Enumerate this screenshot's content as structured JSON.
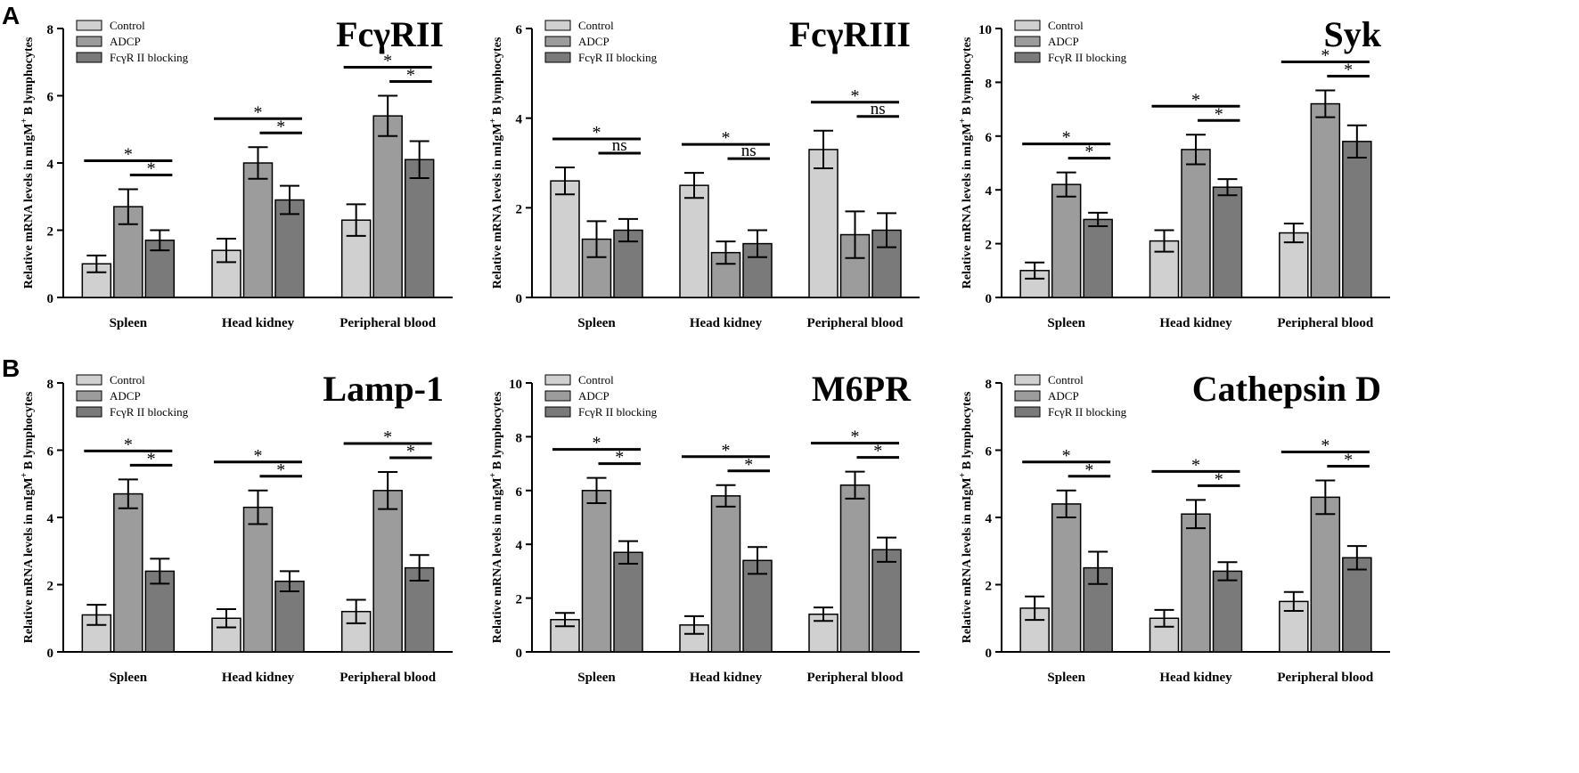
{
  "panel_labels": [
    "A",
    "B"
  ],
  "chart_data": [
    {
      "type": "bar",
      "panel": "A",
      "title": "FcγRII",
      "ylabel_main": "Relative mRNA levels in mIgM",
      "ylabel_sup": "+",
      "ylabel_tail": " B lymphocytes",
      "xlabel": "",
      "ylim": [
        0,
        8
      ],
      "yticks": [
        "0",
        "2",
        "4",
        "6",
        "8"
      ],
      "ytick_values": [
        0,
        2,
        4,
        6,
        8
      ],
      "categories": [
        "Spleen",
        "Head kidney",
        "Peripheral blood"
      ],
      "series": [
        {
          "name": "Control",
          "color": "#d0d0d0",
          "values": [
            1.0,
            1.4,
            2.3
          ],
          "errors": [
            0.25,
            0.35,
            0.47
          ]
        },
        {
          "name": "ADCP",
          "color": "#9c9c9c",
          "values": [
            2.7,
            4.0,
            5.4
          ],
          "errors": [
            0.52,
            0.47,
            0.6
          ]
        },
        {
          "name": "FcγR II blocking",
          "color": "#7a7a7a",
          "values": [
            1.7,
            2.9,
            4.1
          ],
          "errors": [
            0.3,
            0.42,
            0.55
          ]
        }
      ],
      "significance": [
        {
          "category": 0,
          "lower": "*",
          "upper": "*"
        },
        {
          "category": 1,
          "lower": "*",
          "upper": "*"
        },
        {
          "category": 2,
          "lower": "*",
          "upper": "*"
        }
      ]
    },
    {
      "type": "bar",
      "panel": "A",
      "title": "FcγRIII",
      "ylabel_main": "Relative mRNA levels in mIgM",
      "ylabel_sup": "+",
      "ylabel_tail": " B lymphocytes",
      "xlabel": "",
      "ylim": [
        0,
        6
      ],
      "yticks": [
        "0",
        "2",
        "4",
        "6"
      ],
      "ytick_values": [
        0,
        2,
        4,
        6
      ],
      "categories": [
        "Spleen",
        "Head kidney",
        "Peripheral blood"
      ],
      "series": [
        {
          "name": "Control",
          "color": "#d0d0d0",
          "values": [
            2.6,
            2.5,
            3.3
          ],
          "errors": [
            0.3,
            0.28,
            0.42
          ]
        },
        {
          "name": "ADCP",
          "color": "#9c9c9c",
          "values": [
            1.3,
            1.0,
            1.4
          ],
          "errors": [
            0.4,
            0.25,
            0.52
          ]
        },
        {
          "name": "FcγR II blocking",
          "color": "#7a7a7a",
          "values": [
            1.5,
            1.2,
            1.5
          ],
          "errors": [
            0.25,
            0.3,
            0.38
          ]
        }
      ],
      "significance": [
        {
          "category": 0,
          "lower": "ns",
          "upper": "*"
        },
        {
          "category": 1,
          "lower": "ns",
          "upper": "*"
        },
        {
          "category": 2,
          "lower": "ns",
          "upper": "*"
        }
      ]
    },
    {
      "type": "bar",
      "panel": "A",
      "title": "Syk",
      "ylabel_main": "Relative mRNA levels in mIgM",
      "ylabel_sup": "+",
      "ylabel_tail": " B lymphocytes",
      "xlabel": "",
      "ylim": [
        0,
        10
      ],
      "yticks": [
        "0",
        "2",
        "4",
        "6",
        "8",
        "10"
      ],
      "ytick_values": [
        0,
        2,
        4,
        6,
        8,
        10
      ],
      "categories": [
        "Spleen",
        "Head kidney",
        "Peripheral blood"
      ],
      "series": [
        {
          "name": "Control",
          "color": "#d0d0d0",
          "values": [
            1.0,
            2.1,
            2.4
          ],
          "errors": [
            0.3,
            0.4,
            0.35
          ]
        },
        {
          "name": "ADCP",
          "color": "#9c9c9c",
          "values": [
            4.2,
            5.5,
            7.2
          ],
          "errors": [
            0.45,
            0.55,
            0.5
          ]
        },
        {
          "name": "FcγR II blocking",
          "color": "#7a7a7a",
          "values": [
            2.9,
            4.1,
            5.8
          ],
          "errors": [
            0.25,
            0.3,
            0.6
          ]
        }
      ],
      "significance": [
        {
          "category": 0,
          "lower": "*",
          "upper": "*"
        },
        {
          "category": 1,
          "lower": "*",
          "upper": "*"
        },
        {
          "category": 2,
          "lower": "*",
          "upper": "*"
        }
      ]
    },
    {
      "type": "bar",
      "panel": "B",
      "title": "Lamp-1",
      "ylabel_main": "Relative mRNA levels in mIgM",
      "ylabel_sup": "+",
      "ylabel_tail": " B lymphocytes",
      "xlabel": "",
      "ylim": [
        0,
        8
      ],
      "yticks": [
        "0",
        "2",
        "4",
        "6",
        "8"
      ],
      "ytick_values": [
        0,
        2,
        4,
        6,
        8
      ],
      "categories": [
        "Spleen",
        "Head kidney",
        "Peripheral blood"
      ],
      "series": [
        {
          "name": "Control",
          "color": "#d0d0d0",
          "values": [
            1.1,
            1.0,
            1.2
          ],
          "errors": [
            0.3,
            0.27,
            0.35
          ]
        },
        {
          "name": "ADCP",
          "color": "#9c9c9c",
          "values": [
            4.7,
            4.3,
            4.8
          ],
          "errors": [
            0.43,
            0.5,
            0.55
          ]
        },
        {
          "name": "FcγR II blocking",
          "color": "#7a7a7a",
          "values": [
            2.4,
            2.1,
            2.5
          ],
          "errors": [
            0.37,
            0.3,
            0.38
          ]
        }
      ],
      "significance": [
        {
          "category": 0,
          "lower": "*",
          "upper": "*"
        },
        {
          "category": 1,
          "lower": "*",
          "upper": "*"
        },
        {
          "category": 2,
          "lower": "*",
          "upper": "*"
        }
      ]
    },
    {
      "type": "bar",
      "panel": "B",
      "title": "M6PR",
      "ylabel_main": "Relative mRNA levels in mIgM",
      "ylabel_sup": "+",
      "ylabel_tail": " B lymphocytes",
      "xlabel": "",
      "ylim": [
        0,
        10
      ],
      "yticks": [
        "0",
        "2",
        "4",
        "6",
        "8",
        "10"
      ],
      "ytick_values": [
        0,
        2,
        4,
        6,
        8,
        10
      ],
      "categories": [
        "Spleen",
        "Head kidney",
        "Peripheral blood"
      ],
      "series": [
        {
          "name": "Control",
          "color": "#d0d0d0",
          "values": [
            1.2,
            1.0,
            1.4
          ],
          "errors": [
            0.25,
            0.33,
            0.25
          ]
        },
        {
          "name": "ADCP",
          "color": "#9c9c9c",
          "values": [
            6.0,
            5.8,
            6.2
          ],
          "errors": [
            0.47,
            0.4,
            0.5
          ]
        },
        {
          "name": "FcγR II blocking",
          "color": "#7a7a7a",
          "values": [
            3.7,
            3.4,
            3.8
          ],
          "errors": [
            0.42,
            0.5,
            0.45
          ]
        }
      ],
      "significance": [
        {
          "category": 0,
          "lower": "*",
          "upper": "*"
        },
        {
          "category": 1,
          "lower": "*",
          "upper": "*"
        },
        {
          "category": 2,
          "lower": "*",
          "upper": "*"
        }
      ]
    },
    {
      "type": "bar",
      "panel": "B",
      "title": "Cathepsin D",
      "ylabel_main": "Relative mRNA levels in mIgM",
      "ylabel_sup": "+",
      "ylabel_tail": " B lymphocytes",
      "xlabel": "",
      "ylim": [
        0,
        8
      ],
      "yticks": [
        "0",
        "2",
        "4",
        "6",
        "8"
      ],
      "ytick_values": [
        0,
        2,
        4,
        6,
        8
      ],
      "categories": [
        "Spleen",
        "Head kidney",
        "Peripheral blood"
      ],
      "series": [
        {
          "name": "Control",
          "color": "#d0d0d0",
          "values": [
            1.3,
            1.0,
            1.5
          ],
          "errors": [
            0.35,
            0.25,
            0.28
          ]
        },
        {
          "name": "ADCP",
          "color": "#9c9c9c",
          "values": [
            4.4,
            4.1,
            4.6
          ],
          "errors": [
            0.4,
            0.42,
            0.5
          ]
        },
        {
          "name": "FcγR II blocking",
          "color": "#7a7a7a",
          "values": [
            2.5,
            2.4,
            2.8
          ],
          "errors": [
            0.48,
            0.27,
            0.35
          ]
        }
      ],
      "significance": [
        {
          "category": 0,
          "lower": "*",
          "upper": "*"
        },
        {
          "category": 1,
          "lower": "*",
          "upper": "*"
        },
        {
          "category": 2,
          "lower": "*",
          "upper": "*"
        }
      ]
    }
  ]
}
